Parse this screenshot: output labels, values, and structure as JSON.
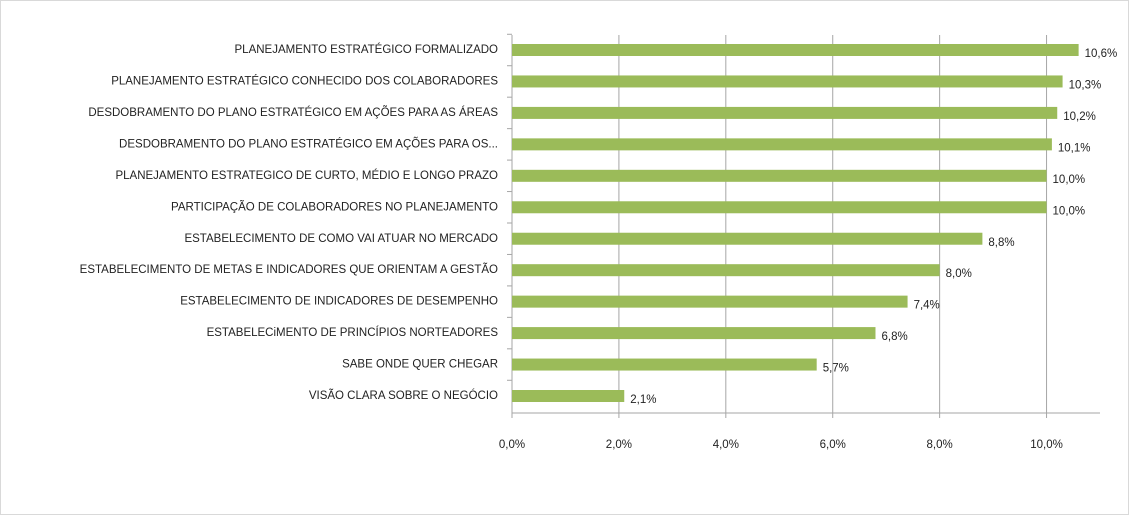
{
  "chart_data": {
    "type": "bar",
    "orientation": "horizontal",
    "categories": [
      "PLANEJAMENTO ESTRATÉGICO  FORMALIZADO",
      "PLANEJAMENTO ESTRATÉGICO  CONHECIDO DOS COLABORADORES",
      "DESDOBRAMENTO  DO PLANO ESTRATÉGICO  EM AÇÕES PARA AS ÁREAS",
      "DESDOBRAMENTO  DO PLANO ESTRATÉGICO  EM AÇÕES PARA OS...",
      "PLANEJAMENTO ESTRATEGICO  DE CURTO, MÉDIO E LONGO PRAZO",
      "PARTICIPAÇÃO DE COLABORADORES NO PLANEJAMENTO",
      "ESTABELECIMENTO  DE COMO VAI ATUAR NO MERCADO",
      "ESTABELECIMENTO  DE METAS E INDICADORES  QUE ORIENTAM A GESTÃO",
      "ESTABELECIMENTO  DE INDICADORES DE DESEMPENHO",
      "ESTABELECiMENTO  DE PRINCÍPIOS  NORTEADORES",
      "SABE ONDE QUER CHEGAR",
      "VISÃO CLARA SOBRE O NEGÓCIO"
    ],
    "values": [
      10.6,
      10.3,
      10.2,
      10.1,
      10.0,
      10.0,
      8.8,
      8.0,
      7.4,
      6.8,
      5.7,
      2.1
    ],
    "value_labels": [
      "10,6%",
      "10,3%",
      "10,2%",
      "10,1%",
      "10,0%",
      "10,0%",
      "8,8%",
      "8,0%",
      "7,4%",
      "6,8%",
      "5,7%",
      "2,1%"
    ],
    "color": "#9bbb59",
    "xlim": [
      0,
      11
    ],
    "xticks": [
      {
        "value": 0,
        "label": "0,0%"
      },
      {
        "value": 2,
        "label": "2,0%"
      },
      {
        "value": 4,
        "label": "4,0%"
      },
      {
        "value": 6,
        "label": "6,0%"
      },
      {
        "value": 8,
        "label": "8,0%"
      },
      {
        "value": 10,
        "label": "10,0%"
      }
    ],
    "grid": true
  }
}
